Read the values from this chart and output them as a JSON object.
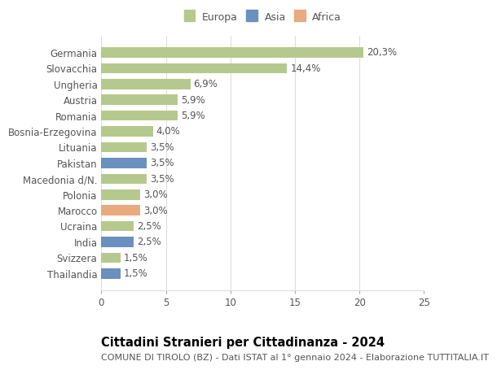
{
  "countries": [
    "Germania",
    "Slovacchia",
    "Ungheria",
    "Austria",
    "Romania",
    "Bosnia-Erzegovina",
    "Lituania",
    "Pakistan",
    "Macedonia d/N.",
    "Polonia",
    "Marocco",
    "Ucraina",
    "India",
    "Svizzera",
    "Thailandia"
  ],
  "values": [
    20.3,
    14.4,
    6.9,
    5.9,
    5.9,
    4.0,
    3.5,
    3.5,
    3.5,
    3.0,
    3.0,
    2.5,
    2.5,
    1.5,
    1.5
  ],
  "categories": [
    "Europa",
    "Europa",
    "Europa",
    "Europa",
    "Europa",
    "Europa",
    "Europa",
    "Asia",
    "Europa",
    "Europa",
    "Africa",
    "Europa",
    "Asia",
    "Europa",
    "Asia"
  ],
  "colors": {
    "Europa": "#b5c98e",
    "Asia": "#6a90bf",
    "Africa": "#e8aa7e"
  },
  "xlim": [
    0,
    25
  ],
  "xticks": [
    0,
    5,
    10,
    15,
    20,
    25
  ],
  "title": "Cittadini Stranieri per Cittadinanza - 2024",
  "subtitle": "COMUNE DI TIROLO (BZ) - Dati ISTAT al 1° gennaio 2024 - Elaborazione TUTTITALIA.IT",
  "bg_color": "#ffffff",
  "bar_height": 0.65,
  "grid_color": "#dddddd",
  "title_fontsize": 10.5,
  "subtitle_fontsize": 8,
  "label_fontsize": 8.5,
  "tick_fontsize": 8.5,
  "legend_fontsize": 9
}
